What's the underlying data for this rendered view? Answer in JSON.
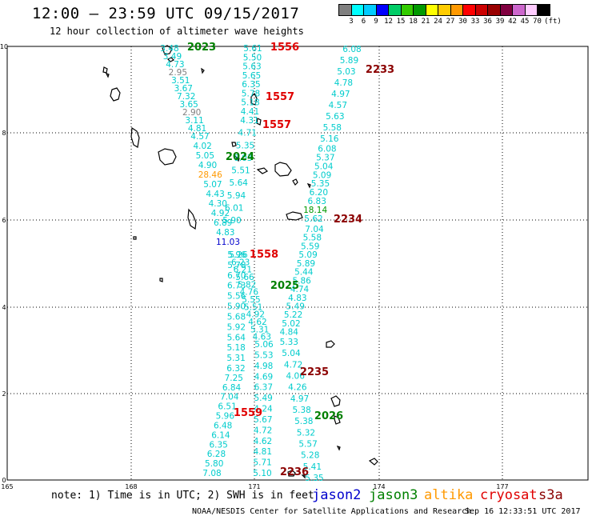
{
  "header": {
    "title": "12:00 – 23:59 UTC 09/15/2017",
    "subtitle": "12 hour collection of altimeter wave heights"
  },
  "color_scale": {
    "colors": [
      "#808080",
      "#00ffff",
      "#00ccff",
      "#0000ff",
      "#00cc66",
      "#33cc00",
      "#009900",
      "#ffff00",
      "#ffcc00",
      "#ff9900",
      "#ff0000",
      "#cc0000",
      "#990000",
      "#800040",
      "#cc66cc",
      "#ffccff",
      "#000000"
    ],
    "labels": [
      "3",
      "6",
      "9",
      "12",
      "15",
      "18",
      "21",
      "24",
      "27",
      "30",
      "33",
      "36",
      "39",
      "42",
      "45",
      "70",
      "(ft)"
    ]
  },
  "axes": {
    "x_labels": [
      "165",
      "168",
      "171",
      "174",
      "177"
    ],
    "y_labels": [
      "10",
      "8",
      "6",
      "4",
      "2",
      "0"
    ]
  },
  "tracks": [
    {
      "time": "2023",
      "sat": "jason3",
      "color": "#008000",
      "values": [
        {
          "v": "3.48",
          "c": "#00cccc"
        },
        {
          "v": "3.49",
          "c": "#00cccc"
        },
        {
          "v": "4.73",
          "c": "#00cccc"
        },
        {
          "v": "2.95",
          "c": "#808080"
        },
        {
          "v": "3.51",
          "c": "#00cccc"
        },
        {
          "v": "3.67",
          "c": "#00cccc"
        },
        {
          "v": "7.32",
          "c": "#00cccc"
        },
        {
          "v": "3.65",
          "c": "#00cccc"
        },
        {
          "v": "2.90",
          "c": "#808080"
        },
        {
          "v": "3.11",
          "c": "#00cccc"
        },
        {
          "v": "4.81",
          "c": "#00cccc"
        },
        {
          "v": "4.57",
          "c": "#00cccc"
        },
        {
          "v": "4.02",
          "c": "#00cccc"
        },
        {
          "v": "5.05",
          "c": "#00cccc"
        },
        {
          "v": "4.90",
          "c": "#00cccc"
        },
        {
          "v": "28.46",
          "c": "#ff9900"
        },
        {
          "v": "5.07",
          "c": "#00cccc"
        },
        {
          "v": "4.43",
          "c": "#00cccc"
        },
        {
          "v": "4.30",
          "c": "#00cccc"
        },
        {
          "v": "4.92",
          "c": "#00cccc"
        },
        {
          "v": "6.89",
          "c": "#00cccc"
        },
        {
          "v": "4.83",
          "c": "#00cccc"
        },
        {
          "v": "11.03",
          "c": "#0000cc"
        }
      ]
    },
    {
      "time": "1556",
      "sat": "cryosat",
      "color": "#e00000",
      "values": [
        {
          "v": "5.61",
          "c": "#00cccc"
        },
        {
          "v": "5.50",
          "c": "#00cccc"
        },
        {
          "v": "5.63",
          "c": "#00cccc"
        },
        {
          "v": "5.65",
          "c": "#00cccc"
        },
        {
          "v": "6.35",
          "c": "#00cccc"
        },
        {
          "v": "5.78",
          "c": "#00cccc"
        },
        {
          "v": "5.18",
          "c": "#00cccc"
        },
        {
          "v": "4.41",
          "c": "#00cccc"
        },
        {
          "v": "4.31",
          "c": "#00cccc"
        },
        {
          "v": "4.71",
          "c": "#00cccc"
        },
        {
          "v": "5.35",
          "c": "#00cccc"
        },
        {
          "v": "6.03",
          "c": "#00cccc"
        },
        {
          "v": "5.51",
          "c": "#00cccc"
        },
        {
          "v": "5.64",
          "c": "#00cccc"
        },
        {
          "v": "5.94",
          "c": "#00cccc"
        },
        {
          "v": "6.01",
          "c": "#00cccc"
        },
        {
          "v": "5.90",
          "c": "#00cccc"
        }
      ]
    },
    {
      "time": "1557",
      "sat": "cryosat",
      "color": "#e00000",
      "values": []
    },
    {
      "time": "1557",
      "sat": "cryosat",
      "color": "#e00000",
      "values": []
    },
    {
      "time": "2024",
      "sat": "jason3",
      "color": "#008000",
      "values": []
    },
    {
      "time": "2233",
      "sat": "s3a",
      "color": "#8b0000",
      "values": [
        {
          "v": "6.08",
          "c": "#00cccc"
        },
        {
          "v": "5.89",
          "c": "#00cccc"
        },
        {
          "v": "5.03",
          "c": "#00cccc"
        },
        {
          "v": "4.78",
          "c": "#00cccc"
        },
        {
          "v": "4.97",
          "c": "#00cccc"
        },
        {
          "v": "4.57",
          "c": "#00cccc"
        },
        {
          "v": "5.63",
          "c": "#00cccc"
        },
        {
          "v": "5.58",
          "c": "#00cccc"
        },
        {
          "v": "5.16",
          "c": "#00cccc"
        },
        {
          "v": "6.08",
          "c": "#00cccc"
        },
        {
          "v": "5.37",
          "c": "#00cccc"
        },
        {
          "v": "5.04",
          "c": "#00cccc"
        },
        {
          "v": "5.09",
          "c": "#00cccc"
        },
        {
          "v": "5.35",
          "c": "#00cccc"
        },
        {
          "v": "6.20",
          "c": "#00cccc"
        },
        {
          "v": "6.83",
          "c": "#00cccc"
        },
        {
          "v": "18.14",
          "c": "#009900"
        },
        {
          "v": "5.62",
          "c": "#00cccc"
        }
      ]
    },
    {
      "time": "2234",
      "sat": "s3a",
      "color": "#8b0000",
      "values": [
        {
          "v": "7.04",
          "c": "#00cccc"
        },
        {
          "v": "5.58",
          "c": "#00cccc"
        },
        {
          "v": "5.59",
          "c": "#00cccc"
        },
        {
          "v": "5.09",
          "c": "#00cccc"
        },
        {
          "v": "5.89",
          "c": "#00cccc"
        },
        {
          "v": "5.44",
          "c": "#00cccc"
        },
        {
          "v": "5.86",
          "c": "#00cccc"
        },
        {
          "v": "4.74",
          "c": "#00cccc"
        },
        {
          "v": "4.83",
          "c": "#00cccc"
        },
        {
          "v": "5.49",
          "c": "#00cccc"
        },
        {
          "v": "5.22",
          "c": "#00cccc"
        },
        {
          "v": "5.02",
          "c": "#00cccc"
        },
        {
          "v": "4.84",
          "c": "#00cccc"
        },
        {
          "v": "5.33",
          "c": "#00cccc"
        },
        {
          "v": "5.04",
          "c": "#00cccc"
        },
        {
          "v": "4.72",
          "c": "#00cccc"
        },
        {
          "v": "4.06",
          "c": "#00cccc"
        },
        {
          "v": "4.26",
          "c": "#00cccc"
        },
        {
          "v": "4.97",
          "c": "#00cccc"
        },
        {
          "v": "5.38",
          "c": "#00cccc"
        },
        {
          "v": "5.38",
          "c": "#00cccc"
        },
        {
          "v": "5.32",
          "c": "#00cccc"
        },
        {
          "v": "5.57",
          "c": "#00cccc"
        },
        {
          "v": "5.28",
          "c": "#00cccc"
        },
        {
          "v": "5.41",
          "c": "#00cccc"
        },
        {
          "v": "5.35",
          "c": "#00cccc"
        }
      ]
    },
    {
      "time": "1558",
      "sat": "cryosat",
      "color": "#e00000",
      "values": [
        {
          "v": "5.96",
          "c": "#00cccc"
        },
        {
          "v": "5.78",
          "c": "#00cccc"
        },
        {
          "v": "6.70",
          "c": "#00cccc"
        },
        {
          "v": "6.73",
          "c": "#00cccc"
        },
        {
          "v": "5.56",
          "c": "#00cccc"
        },
        {
          "v": "5.90",
          "c": "#00cccc"
        },
        {
          "v": "5.68",
          "c": "#00cccc"
        },
        {
          "v": "5.92",
          "c": "#00cccc"
        },
        {
          "v": "5.64",
          "c": "#00cccc"
        },
        {
          "v": "5.18",
          "c": "#00cccc"
        },
        {
          "v": "5.31",
          "c": "#00cccc"
        },
        {
          "v": "6.32",
          "c": "#00cccc"
        },
        {
          "v": "7.25",
          "c": "#00cccc"
        },
        {
          "v": "6.84",
          "c": "#00cccc"
        },
        {
          "v": "7.04",
          "c": "#00cccc"
        },
        {
          "v": "6.51",
          "c": "#00cccc"
        },
        {
          "v": "5.96",
          "c": "#00cccc"
        },
        {
          "v": "6.48",
          "c": "#00cccc"
        },
        {
          "v": "6.14",
          "c": "#00cccc"
        },
        {
          "v": "6.35",
          "c": "#00cccc"
        },
        {
          "v": "6.28",
          "c": "#00cccc"
        },
        {
          "v": "5.80",
          "c": "#00cccc"
        },
        {
          "v": "7.08",
          "c": "#00cccc"
        }
      ]
    },
    {
      "time": "2025",
      "sat": "jason3",
      "color": "#008000",
      "values": [
        {
          "v": "5.26",
          "c": "#00cccc"
        },
        {
          "v": "6.23",
          "c": "#00cccc"
        },
        {
          "v": "6.21",
          "c": "#00cccc"
        },
        {
          "v": "5.66",
          "c": "#00cccc"
        },
        {
          "v": "5.82",
          "c": "#00cccc"
        },
        {
          "v": "4.76",
          "c": "#00cccc"
        },
        {
          "v": "5.55",
          "c": "#00cccc"
        },
        {
          "v": "5.51",
          "c": "#00cccc"
        },
        {
          "v": "4.92",
          "c": "#00cccc"
        },
        {
          "v": "4.62",
          "c": "#00cccc"
        },
        {
          "v": "5.31",
          "c": "#00cccc"
        },
        {
          "v": "4.63",
          "c": "#00cccc"
        },
        {
          "v": "5.06",
          "c": "#00cccc"
        },
        {
          "v": "5.53",
          "c": "#00cccc"
        },
        {
          "v": "4.98",
          "c": "#00cccc"
        },
        {
          "v": "4.69",
          "c": "#00cccc"
        },
        {
          "v": "6.37",
          "c": "#00cccc"
        },
        {
          "v": "5.49",
          "c": "#00cccc"
        },
        {
          "v": "4.24",
          "c": "#00cccc"
        },
        {
          "v": "5.67",
          "c": "#00cccc"
        },
        {
          "v": "4.72",
          "c": "#00cccc"
        },
        {
          "v": "4.62",
          "c": "#00cccc"
        },
        {
          "v": "4.81",
          "c": "#00cccc"
        },
        {
          "v": "5.71",
          "c": "#00cccc"
        },
        {
          "v": "5.10",
          "c": "#00cccc"
        }
      ]
    },
    {
      "time": "2235",
      "sat": "s3a",
      "color": "#8b0000",
      "values": []
    },
    {
      "time": "1559",
      "sat": "cryosat",
      "color": "#e00000",
      "values": []
    },
    {
      "time": "2026",
      "sat": "jason3",
      "color": "#008000",
      "values": []
    },
    {
      "time": "2236",
      "sat": "s3a",
      "color": "#8b0000",
      "values": []
    }
  ],
  "footer": {
    "note": "note: 1) Time is in UTC; 2) SWH is in feet",
    "satellites": [
      {
        "name": "jason2",
        "color": "#0000cc"
      },
      {
        "name": "jason3",
        "color": "#008000"
      },
      {
        "name": "altika",
        "color": "#ff9900"
      },
      {
        "name": "cryosat",
        "color": "#e00000"
      },
      {
        "name": "s3a",
        "color": "#8b0000"
      }
    ],
    "credit": "NOAA/NESDIS Center for Satellite Applications and Research",
    "timestamp": "Sep 16 12:33:51 UTC 2017"
  }
}
